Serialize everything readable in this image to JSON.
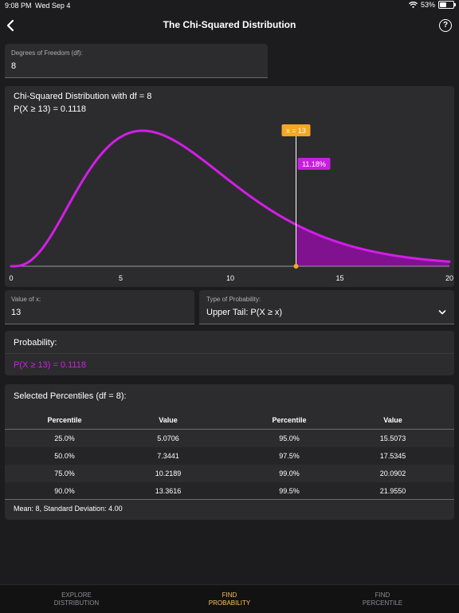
{
  "status_bar": {
    "time": "9:08 PM",
    "date": "Wed Sep 4",
    "battery": "53%",
    "battery_level": 0.53
  },
  "nav": {
    "title": "The Chi-Squared Distribution",
    "help_symbol": "?"
  },
  "df_field": {
    "label": "Degrees of Freedom (df):",
    "value": "8"
  },
  "chart": {
    "title": "Chi-Squared Distribution with df = 8",
    "subtitle": "P(X ≥ 13) = 0.1118",
    "marker_label": "x = 13",
    "percent_label": "11.18%",
    "colors": {
      "curve": "#d21ee6",
      "fill": "#8a109a",
      "marker": "#f5a623",
      "badge": "#c81ee0"
    }
  },
  "chart_data": {
    "type": "area",
    "distribution": "chi-squared",
    "df": 8,
    "x_marker": 13,
    "tail": "upper",
    "shaded_probability": 0.1118,
    "xlim": [
      0,
      20
    ],
    "x_ticks": [
      "0",
      "5",
      "10",
      "15",
      "20"
    ],
    "grid": false
  },
  "x_field": {
    "label": "Value of x:",
    "value": "13"
  },
  "type_field": {
    "label": "Type of Probability:",
    "value": "Upper Tail: P(X ≥ x)"
  },
  "probability": {
    "title": "Probability:",
    "value": "P(X ≥ 13) = 0.1118"
  },
  "percentiles": {
    "title": "Selected Percentiles (df = 8):",
    "headers": [
      "Percentile",
      "Value",
      "Percentile",
      "Value"
    ],
    "rows": [
      [
        "25.0%",
        "5.0706",
        "95.0%",
        "15.5073"
      ],
      [
        "50.0%",
        "7.3441",
        "97.5%",
        "17.5345"
      ],
      [
        "75.0%",
        "10.2189",
        "99.0%",
        "20.0902"
      ],
      [
        "90.0%",
        "13.3616",
        "99.5%",
        "21.9550"
      ]
    ],
    "summary": "Mean: 8, Standard Deviation: 4.00"
  },
  "tabs": [
    {
      "line1": "EXPLORE",
      "line2": "DISTRIBUTION",
      "active": false
    },
    {
      "line1": "FIND",
      "line2": "PROBABILITY",
      "active": true
    },
    {
      "line1": "FIND",
      "line2": "PERCENTILE",
      "active": false
    }
  ]
}
